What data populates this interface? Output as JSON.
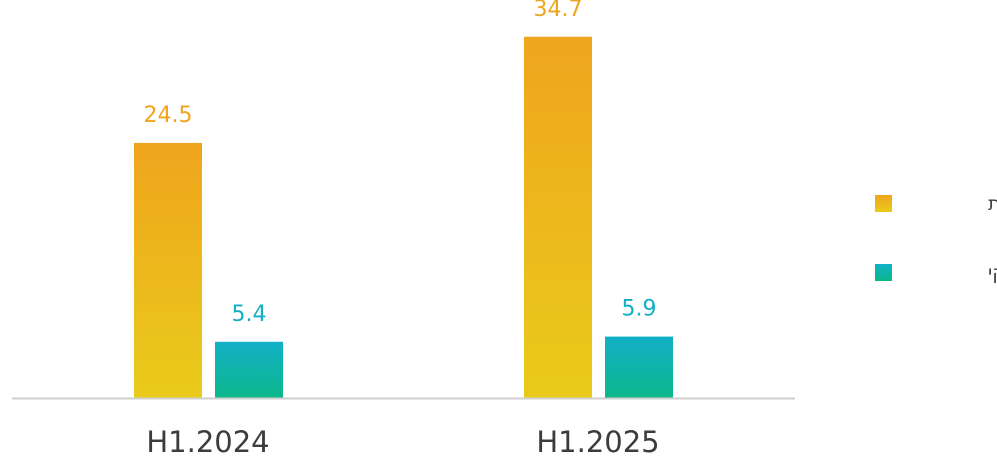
{
  "chart_data": {
    "type": "bar",
    "categories": [
      "H1.2024",
      "H1.2025"
    ],
    "series": [
      {
        "name": "הכנסות",
        "values": [
          24.5,
          34.7
        ],
        "labels": [
          "24.5",
          "34.7"
        ],
        "color": "#efa51d",
        "color_end": "#e9cb1b"
      },
      {
        "name": "רווח נקי",
        "values": [
          5.4,
          5.9
        ],
        "labels": [
          "5.4",
          "5.9"
        ],
        "color": "#12b0c8",
        "color_end": "#0cb78a"
      }
    ],
    "ylim": [
      0,
      36.5
    ],
    "grid": false,
    "legend": "right",
    "axis_color": "#cfcfcf"
  }
}
